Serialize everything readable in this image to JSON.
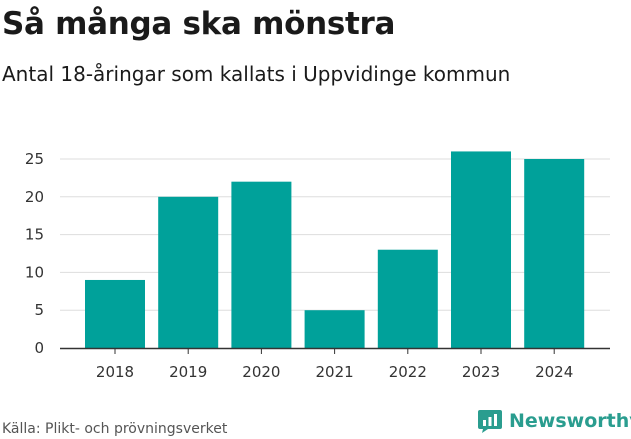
{
  "header": {
    "title": "Så många ska mönstra",
    "subtitle": "Antal 18-åringar som kallats i Uppvidinge kommun"
  },
  "footer": {
    "source": "Källa: Plikt- och prövningsverket",
    "brand": "Newsworthy",
    "brand_icon": "newsworthy-logo-icon"
  },
  "colors": {
    "bar": "#00a19a",
    "grid": "#dddddd",
    "axis": "#333333",
    "brand": "#2a9d8f"
  },
  "chart_data": {
    "type": "bar",
    "categories": [
      "2018",
      "2019",
      "2020",
      "2021",
      "2022",
      "2023",
      "2024"
    ],
    "values": [
      9,
      20,
      22,
      5,
      13,
      26,
      25
    ],
    "title": "Så många ska mönstra",
    "subtitle": "Antal 18-åringar som kallats i Uppvidinge kommun",
    "xlabel": "",
    "ylabel": "",
    "ylim": [
      0,
      26
    ],
    "yticks": [
      0,
      5,
      10,
      15,
      20,
      25
    ],
    "grid": true,
    "legend": "none"
  }
}
